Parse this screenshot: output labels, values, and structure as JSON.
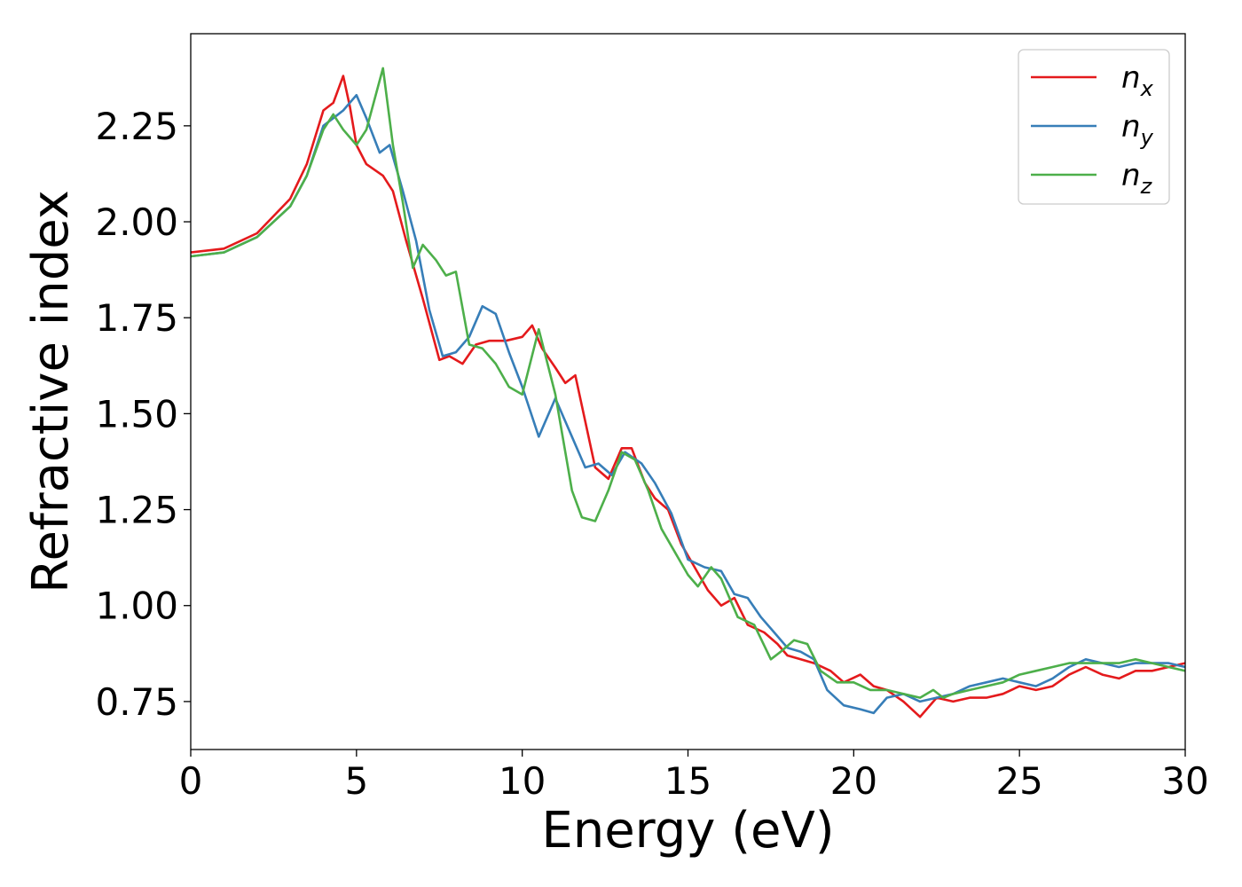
{
  "chart_data": {
    "type": "line",
    "title": "",
    "xlabel": "Energy (eV)",
    "ylabel": "Refractive index",
    "xlim": [
      0,
      30
    ],
    "ylim": [
      0.625,
      2.49
    ],
    "x_ticks": [
      0,
      5,
      10,
      15,
      20,
      25,
      30
    ],
    "x_tick_labels": [
      "0",
      "5",
      "10",
      "15",
      "20",
      "25",
      "30"
    ],
    "y_ticks": [
      0.75,
      1.0,
      1.25,
      1.5,
      1.75,
      2.0,
      2.25
    ],
    "y_tick_labels": [
      "0.75",
      "1.00",
      "1.25",
      "1.50",
      "1.75",
      "2.00",
      "2.25"
    ],
    "grid": false,
    "legend_position": "top-right",
    "series": [
      {
        "name": "n",
        "subscript": "x",
        "color": "#e41a1c",
        "points": [
          [
            0,
            1.92
          ],
          [
            1,
            1.93
          ],
          [
            2,
            1.97
          ],
          [
            3,
            2.06
          ],
          [
            3.5,
            2.15
          ],
          [
            4,
            2.29
          ],
          [
            4.3,
            2.31
          ],
          [
            4.6,
            2.38
          ],
          [
            4.8,
            2.3
          ],
          [
            5,
            2.2
          ],
          [
            5.3,
            2.15
          ],
          [
            5.8,
            2.12
          ],
          [
            6.1,
            2.08
          ],
          [
            6.5,
            1.95
          ],
          [
            7,
            1.8
          ],
          [
            7.5,
            1.64
          ],
          [
            7.8,
            1.65
          ],
          [
            8.2,
            1.63
          ],
          [
            8.6,
            1.68
          ],
          [
            9,
            1.69
          ],
          [
            9.5,
            1.69
          ],
          [
            10,
            1.7
          ],
          [
            10.3,
            1.73
          ],
          [
            10.6,
            1.67
          ],
          [
            11,
            1.62
          ],
          [
            11.3,
            1.58
          ],
          [
            11.6,
            1.6
          ],
          [
            11.9,
            1.48
          ],
          [
            12.2,
            1.36
          ],
          [
            12.6,
            1.33
          ],
          [
            13,
            1.41
          ],
          [
            13.3,
            1.41
          ],
          [
            13.7,
            1.32
          ],
          [
            14,
            1.28
          ],
          [
            14.4,
            1.25
          ],
          [
            14.8,
            1.16
          ],
          [
            15.2,
            1.1
          ],
          [
            15.6,
            1.04
          ],
          [
            16,
            1.0
          ],
          [
            16.4,
            1.02
          ],
          [
            16.8,
            0.95
          ],
          [
            17.3,
            0.93
          ],
          [
            17.7,
            0.9
          ],
          [
            18,
            0.87
          ],
          [
            18.4,
            0.86
          ],
          [
            18.8,
            0.85
          ],
          [
            19.3,
            0.83
          ],
          [
            19.7,
            0.8
          ],
          [
            20.2,
            0.82
          ],
          [
            20.6,
            0.79
          ],
          [
            21,
            0.78
          ],
          [
            21.5,
            0.75
          ],
          [
            22,
            0.71
          ],
          [
            22.5,
            0.76
          ],
          [
            23,
            0.75
          ],
          [
            23.5,
            0.76
          ],
          [
            24,
            0.76
          ],
          [
            24.5,
            0.77
          ],
          [
            25,
            0.79
          ],
          [
            25.5,
            0.78
          ],
          [
            26,
            0.79
          ],
          [
            26.5,
            0.82
          ],
          [
            27,
            0.84
          ],
          [
            27.5,
            0.82
          ],
          [
            28,
            0.81
          ],
          [
            28.5,
            0.83
          ],
          [
            29,
            0.83
          ],
          [
            29.5,
            0.84
          ],
          [
            30,
            0.85
          ]
        ]
      },
      {
        "name": "n",
        "subscript": "y",
        "color": "#377eb8",
        "points": [
          [
            0,
            1.91
          ],
          [
            1,
            1.92
          ],
          [
            2,
            1.96
          ],
          [
            3,
            2.04
          ],
          [
            3.5,
            2.12
          ],
          [
            4,
            2.25
          ],
          [
            4.3,
            2.27
          ],
          [
            4.6,
            2.29
          ],
          [
            5,
            2.33
          ],
          [
            5.3,
            2.27
          ],
          [
            5.7,
            2.18
          ],
          [
            6,
            2.2
          ],
          [
            6.4,
            2.08
          ],
          [
            6.8,
            1.95
          ],
          [
            7.2,
            1.77
          ],
          [
            7.6,
            1.65
          ],
          [
            8,
            1.66
          ],
          [
            8.4,
            1.7
          ],
          [
            8.8,
            1.78
          ],
          [
            9.2,
            1.76
          ],
          [
            9.6,
            1.66
          ],
          [
            10,
            1.57
          ],
          [
            10.5,
            1.44
          ],
          [
            11,
            1.54
          ],
          [
            11.5,
            1.44
          ],
          [
            11.9,
            1.36
          ],
          [
            12.3,
            1.37
          ],
          [
            12.7,
            1.34
          ],
          [
            13.1,
            1.4
          ],
          [
            13.6,
            1.37
          ],
          [
            14,
            1.32
          ],
          [
            14.5,
            1.24
          ],
          [
            15,
            1.12
          ],
          [
            15.5,
            1.1
          ],
          [
            16,
            1.09
          ],
          [
            16.4,
            1.03
          ],
          [
            16.8,
            1.02
          ],
          [
            17.2,
            0.97
          ],
          [
            17.6,
            0.93
          ],
          [
            18,
            0.89
          ],
          [
            18.4,
            0.88
          ],
          [
            18.8,
            0.86
          ],
          [
            19.2,
            0.78
          ],
          [
            19.7,
            0.74
          ],
          [
            20.2,
            0.73
          ],
          [
            20.6,
            0.72
          ],
          [
            21,
            0.76
          ],
          [
            21.5,
            0.77
          ],
          [
            22,
            0.75
          ],
          [
            22.5,
            0.76
          ],
          [
            23,
            0.77
          ],
          [
            23.5,
            0.79
          ],
          [
            24,
            0.8
          ],
          [
            24.5,
            0.81
          ],
          [
            25,
            0.8
          ],
          [
            25.5,
            0.79
          ],
          [
            26,
            0.81
          ],
          [
            26.5,
            0.84
          ],
          [
            27,
            0.86
          ],
          [
            27.5,
            0.85
          ],
          [
            28,
            0.84
          ],
          [
            28.5,
            0.85
          ],
          [
            29,
            0.85
          ],
          [
            29.5,
            0.85
          ],
          [
            30,
            0.84
          ]
        ]
      },
      {
        "name": "n",
        "subscript": "z",
        "color": "#4daf4a",
        "points": [
          [
            0,
            1.91
          ],
          [
            1,
            1.92
          ],
          [
            2,
            1.96
          ],
          [
            3,
            2.04
          ],
          [
            3.5,
            2.12
          ],
          [
            4,
            2.24
          ],
          [
            4.3,
            2.28
          ],
          [
            4.6,
            2.24
          ],
          [
            5,
            2.2
          ],
          [
            5.3,
            2.24
          ],
          [
            5.8,
            2.4
          ],
          [
            6.1,
            2.2
          ],
          [
            6.4,
            2.05
          ],
          [
            6.7,
            1.88
          ],
          [
            7,
            1.94
          ],
          [
            7.4,
            1.9
          ],
          [
            7.7,
            1.86
          ],
          [
            8,
            1.87
          ],
          [
            8.4,
            1.68
          ],
          [
            8.8,
            1.67
          ],
          [
            9.2,
            1.63
          ],
          [
            9.6,
            1.57
          ],
          [
            10,
            1.55
          ],
          [
            10.5,
            1.72
          ],
          [
            11,
            1.55
          ],
          [
            11.5,
            1.3
          ],
          [
            11.8,
            1.23
          ],
          [
            12.2,
            1.22
          ],
          [
            12.6,
            1.3
          ],
          [
            13,
            1.4
          ],
          [
            13.4,
            1.38
          ],
          [
            13.8,
            1.3
          ],
          [
            14.2,
            1.2
          ],
          [
            14.6,
            1.14
          ],
          [
            15,
            1.08
          ],
          [
            15.3,
            1.05
          ],
          [
            15.7,
            1.1
          ],
          [
            16,
            1.07
          ],
          [
            16.5,
            0.97
          ],
          [
            17,
            0.95
          ],
          [
            17.5,
            0.86
          ],
          [
            17.8,
            0.88
          ],
          [
            18.2,
            0.91
          ],
          [
            18.6,
            0.9
          ],
          [
            19,
            0.83
          ],
          [
            19.5,
            0.8
          ],
          [
            20,
            0.8
          ],
          [
            20.5,
            0.78
          ],
          [
            21,
            0.78
          ],
          [
            21.5,
            0.77
          ],
          [
            22,
            0.76
          ],
          [
            22.4,
            0.78
          ],
          [
            22.7,
            0.76
          ],
          [
            23,
            0.77
          ],
          [
            23.5,
            0.78
          ],
          [
            24,
            0.79
          ],
          [
            24.5,
            0.8
          ],
          [
            25,
            0.82
          ],
          [
            25.5,
            0.83
          ],
          [
            26,
            0.84
          ],
          [
            26.5,
            0.85
          ],
          [
            27,
            0.85
          ],
          [
            27.5,
            0.85
          ],
          [
            28,
            0.85
          ],
          [
            28.5,
            0.86
          ],
          [
            29,
            0.85
          ],
          [
            29.5,
            0.84
          ],
          [
            30,
            0.83
          ]
        ]
      }
    ]
  }
}
